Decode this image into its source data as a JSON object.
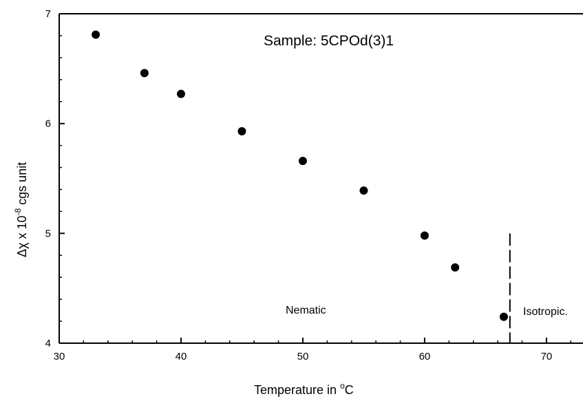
{
  "chart_data": {
    "type": "scatter",
    "title": "Sample: 5CPOd(3)1",
    "xlabel_main": "Temperature in ",
    "xlabel_sup": "o",
    "xlabel_tail": "C",
    "ylabel_main": "Δχ x 10",
    "ylabel_sup": "-8",
    "ylabel_tail": " cgs unit",
    "xlim": [
      30,
      73
    ],
    "ylim": [
      4,
      7
    ],
    "x_ticks": [
      30,
      40,
      50,
      60,
      70
    ],
    "x_tick_labels": [
      "30",
      "40",
      "50",
      "60",
      "70"
    ],
    "y_ticks": [
      4,
      5,
      6,
      7
    ],
    "y_tick_labels": [
      "4",
      "5",
      "6",
      "7"
    ],
    "grid": false,
    "transition_x": 67,
    "transition_y_top": 5.0,
    "annotations": {
      "nematic": "Nematic",
      "isotropic": "Isotropic."
    },
    "x": [
      33,
      37,
      40,
      45,
      50,
      55,
      60,
      62.5,
      66.5
    ],
    "y": [
      6.81,
      6.46,
      6.27,
      5.93,
      5.66,
      5.39,
      4.98,
      4.69,
      4.24
    ],
    "marker_color": "#000000"
  }
}
